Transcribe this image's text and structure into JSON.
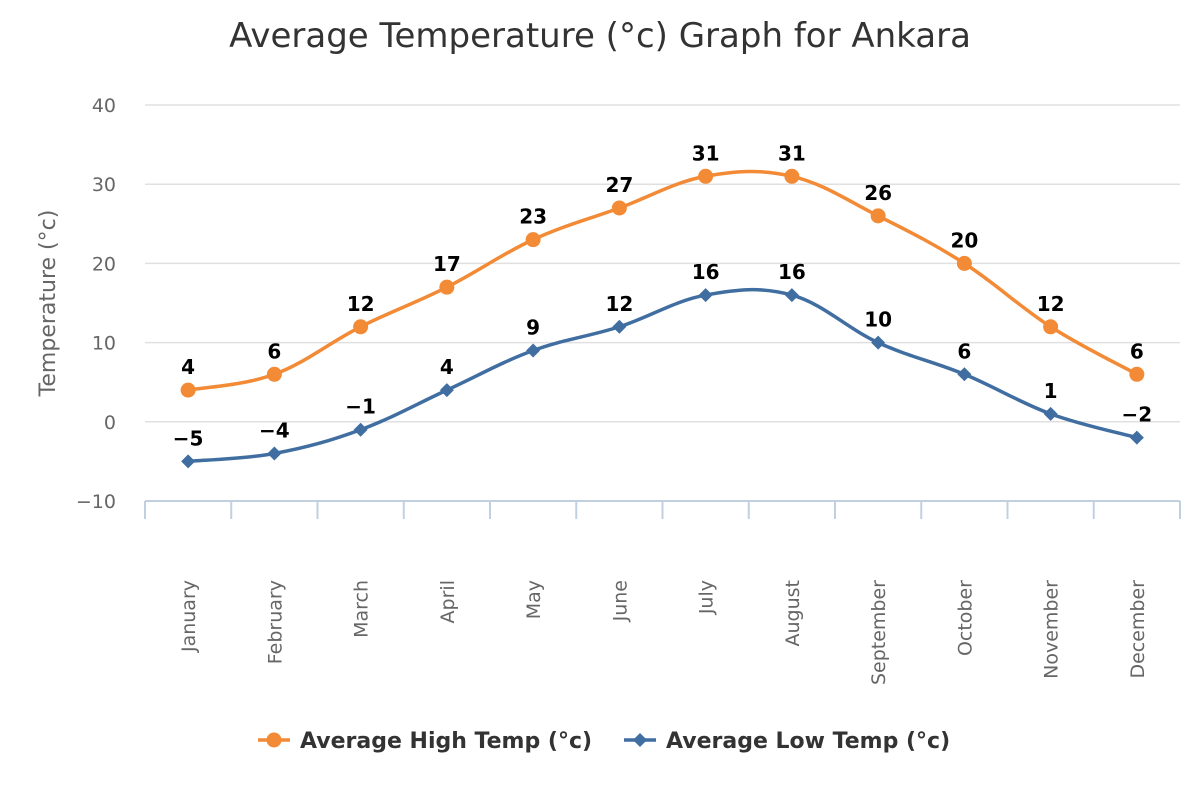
{
  "chart_data": {
    "type": "line",
    "title": "Average Temperature (°c) Graph for Ankara",
    "xlabel": "",
    "ylabel": "Temperature (°c)",
    "ylim": [
      -10,
      40
    ],
    "yticks": [
      "−10",
      "0",
      "10",
      "20",
      "30",
      "40"
    ],
    "grid": true,
    "legend_position": "bottom",
    "categories": [
      "January",
      "February",
      "March",
      "April",
      "May",
      "June",
      "July",
      "August",
      "September",
      "October",
      "November",
      "December"
    ],
    "series": [
      {
        "name": "Average High Temp (°c)",
        "color": "#f28a36",
        "marker": "circle",
        "values": [
          4,
          6,
          12,
          17,
          23,
          27,
          31,
          31,
          26,
          20,
          12,
          6
        ]
      },
      {
        "name": "Average Low Temp (°c)",
        "color": "#416ea1",
        "marker": "diamond",
        "values": [
          -5,
          -4,
          -1,
          4,
          9,
          12,
          16,
          16,
          10,
          6,
          1,
          -2
        ]
      }
    ]
  }
}
